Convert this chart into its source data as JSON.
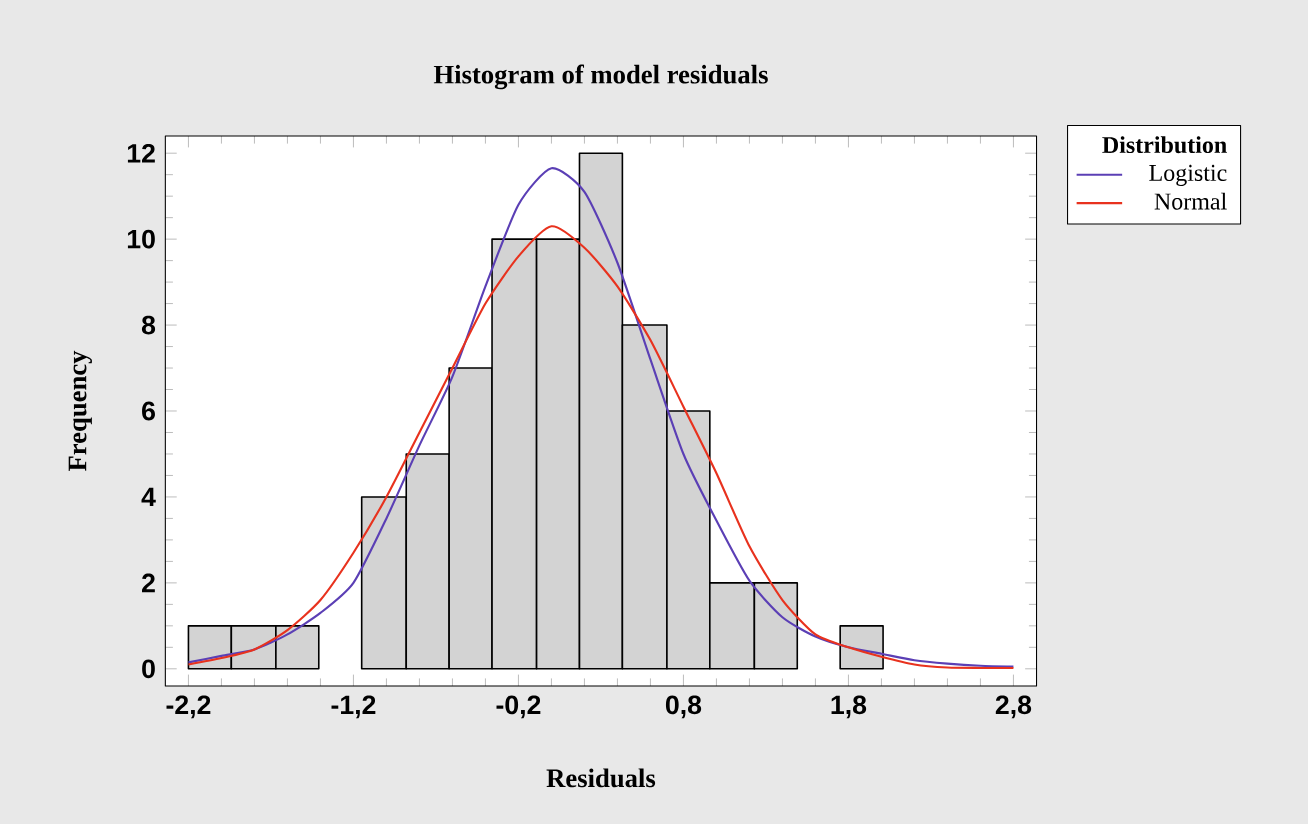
{
  "chart_data": {
    "type": "histogram",
    "title": "Histogram of model residuals",
    "xlabel": "Residuals",
    "ylabel": "Frequency",
    "legend_title": "Distribution",
    "bins": [
      -2.2,
      -1.94,
      -1.67,
      -1.41,
      -1.15,
      -0.88,
      -0.62,
      -0.36,
      -0.09,
      0.17,
      0.43,
      0.7,
      0.96,
      1.23,
      1.49,
      1.75,
      2.01
    ],
    "values": [
      1,
      1,
      1,
      0,
      4,
      5,
      7,
      10,
      10,
      12,
      8,
      6,
      2,
      2,
      0,
      1
    ],
    "color": "#d3d3d3",
    "series": [
      {
        "name": "Logistic",
        "type": "line",
        "color": "#5b3fb5",
        "x": [
          -2.2,
          -2.0,
          -1.8,
          -1.6,
          -1.4,
          -1.2,
          -1.0,
          -0.8,
          -0.6,
          -0.4,
          -0.2,
          0.0,
          0.2,
          0.4,
          0.6,
          0.8,
          1.0,
          1.2,
          1.4,
          1.6,
          1.8,
          2.0,
          2.2,
          2.4,
          2.6,
          2.8
        ],
        "values": [
          0.15,
          0.3,
          0.45,
          0.8,
          1.3,
          2.0,
          3.5,
          5.2,
          6.8,
          8.9,
          10.8,
          11.65,
          11.1,
          9.45,
          7.2,
          5.0,
          3.45,
          2.05,
          1.2,
          0.75,
          0.5,
          0.35,
          0.2,
          0.12,
          0.07,
          0.05
        ]
      },
      {
        "name": "Normal",
        "type": "line",
        "color": "#e8321e",
        "x": [
          -2.2,
          -2.0,
          -1.8,
          -1.6,
          -1.4,
          -1.2,
          -1.0,
          -0.8,
          -0.6,
          -0.4,
          -0.2,
          0.0,
          0.2,
          0.4,
          0.6,
          0.8,
          1.0,
          1.2,
          1.4,
          1.6,
          1.8,
          2.0,
          2.2,
          2.4,
          2.6,
          2.8
        ],
        "values": [
          0.1,
          0.25,
          0.45,
          0.9,
          1.6,
          2.7,
          4.0,
          5.5,
          7.0,
          8.5,
          9.6,
          10.3,
          9.8,
          8.9,
          7.65,
          6.1,
          4.55,
          2.85,
          1.6,
          0.8,
          0.5,
          0.28,
          0.1,
          0.03,
          0.02,
          0.02
        ]
      }
    ],
    "xlim": [
      -2.34,
      2.94
    ],
    "ylim": [
      -0.4,
      12.4
    ],
    "xticks": [
      {
        "value": -2.2,
        "label": "-2,2"
      },
      {
        "value": -1.2,
        "label": "-1,2"
      },
      {
        "value": -0.2,
        "label": "-0,2"
      },
      {
        "value": 0.8,
        "label": "0,8"
      },
      {
        "value": 1.8,
        "label": "1,8"
      },
      {
        "value": 2.8,
        "label": "2,8"
      }
    ],
    "yticks": [
      0,
      2,
      4,
      6,
      8,
      10,
      12
    ],
    "legend": "right",
    "grid": false
  }
}
